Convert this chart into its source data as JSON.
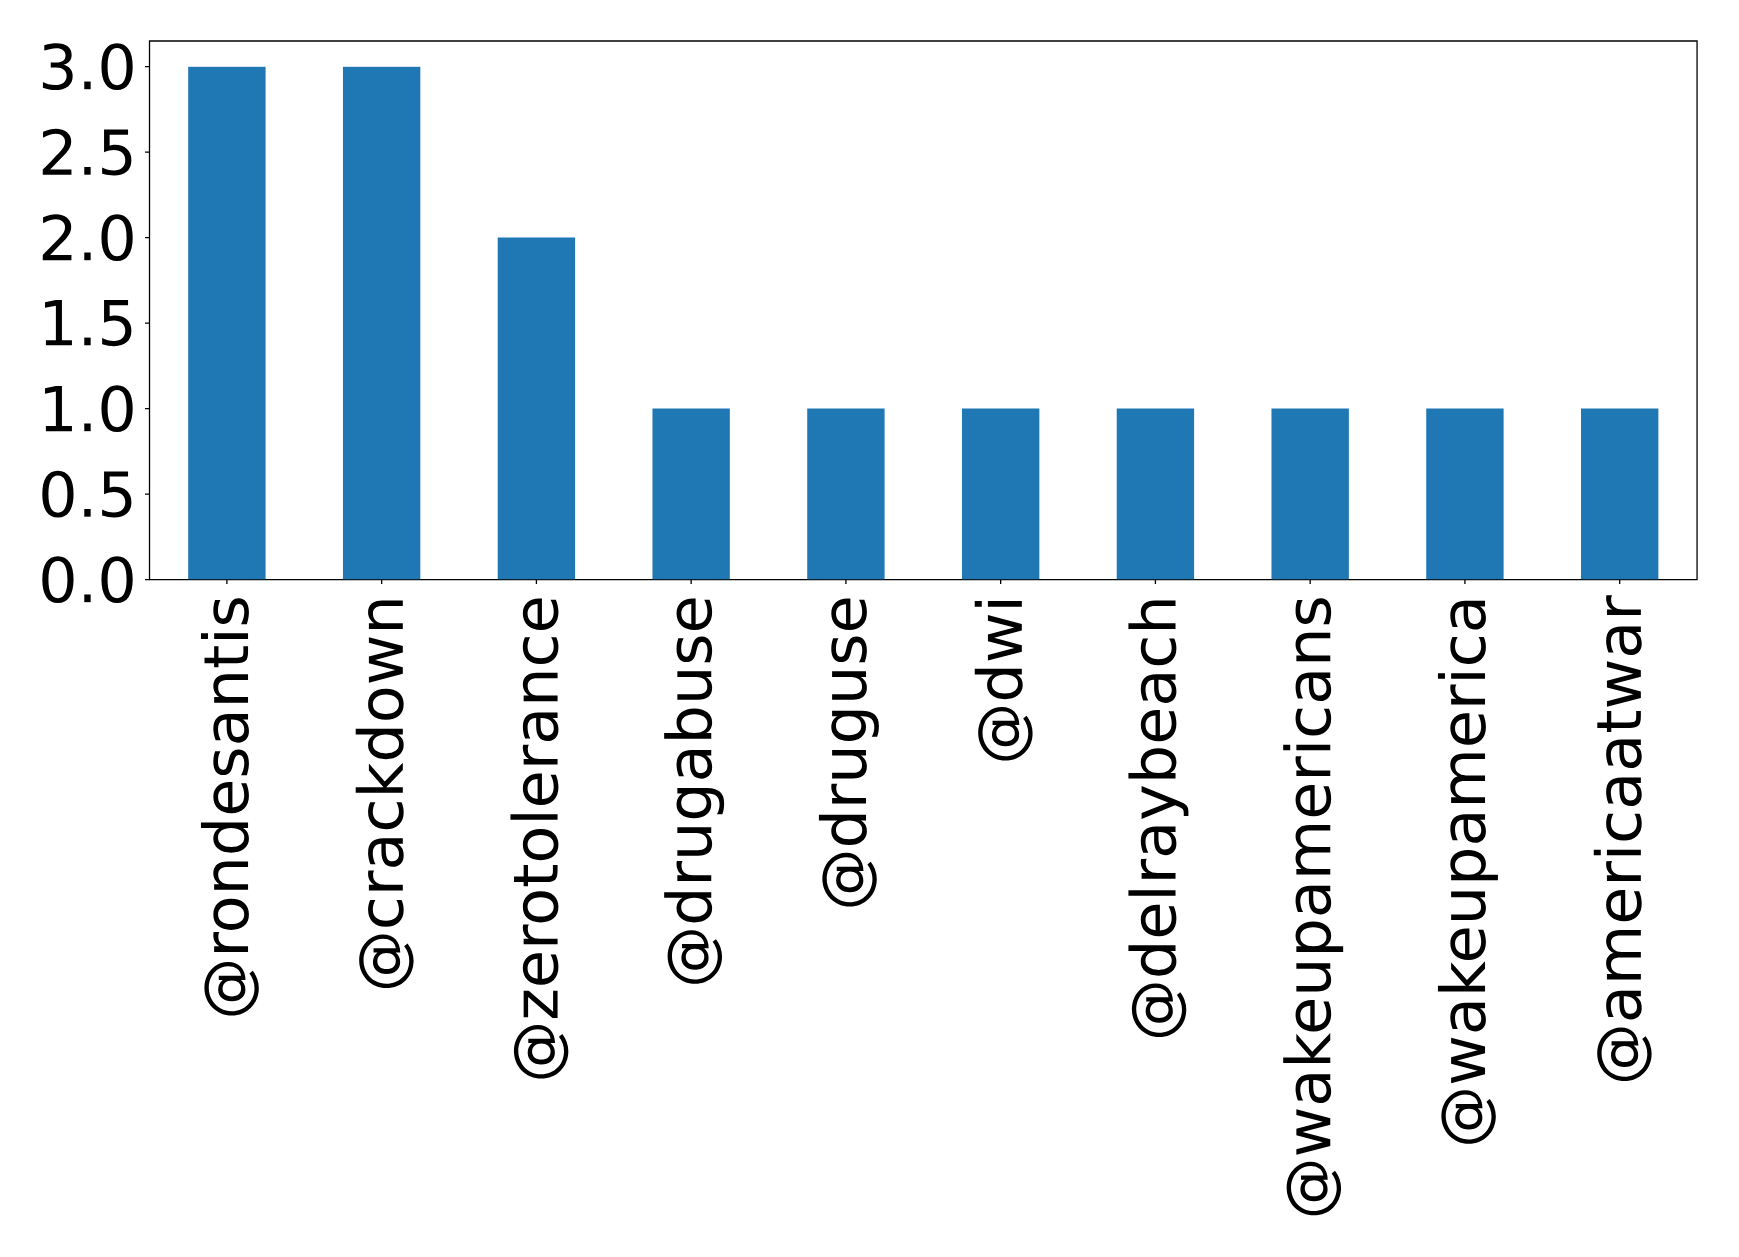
{
  "chart_data": {
    "type": "bar",
    "categories": [
      "@rondesantis",
      "@crackdown",
      "@zerotolerance",
      "@drugabuse",
      "@druguse",
      "@dwi",
      "@delraybeach",
      "@wakeupamericans",
      "@wakeupamerica",
      "@americaatwar"
    ],
    "values": [
      3,
      3,
      2,
      1,
      1,
      1,
      1,
      1,
      1,
      1
    ],
    "color": "#1f77b4",
    "ylim": [
      0,
      3.15
    ],
    "yticks": [
      {
        "value": 0,
        "label": "0.0"
      },
      0.5,
      {
        "value": 1,
        "label": "1.0"
      },
      1.5,
      {
        "value": 2,
        "label": "2.0"
      },
      2.5,
      {
        "value": 3,
        "label": "3.0"
      }
    ]
  }
}
